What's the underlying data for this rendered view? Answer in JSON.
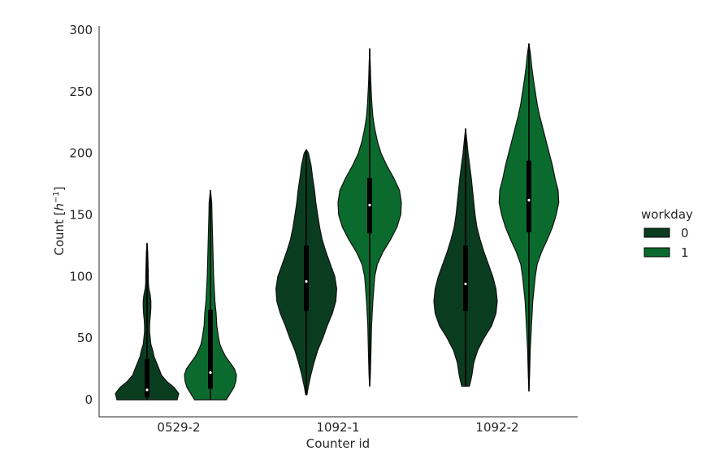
{
  "chart_data": {
    "type": "violin",
    "title": "",
    "xlabel": "Counter id",
    "ylabel_main": "Count [",
    "ylabel_h": "h",
    "ylabel_exp": "−1",
    "ylabel_close": "]",
    "ylim": [
      -14,
      302
    ],
    "yticks": [
      0,
      50,
      100,
      150,
      200,
      250,
      300
    ],
    "categories": [
      "0529-2",
      "1092-1",
      "1092-2"
    ],
    "legend": {
      "title": "workday",
      "placement": "right",
      "entries": [
        {
          "label": "0",
          "color": "#0a3d1f"
        },
        {
          "label": "1",
          "color": "#0b6b2e"
        }
      ]
    },
    "series": [
      {
        "name": "0",
        "color": "#0a3d1f",
        "violins": [
          {
            "category": "0529-2",
            "min": 0,
            "max": 127,
            "q1": 2,
            "median": 8,
            "q3": 33,
            "density": [
              [
                0,
                0.95
              ],
              [
                5,
                1.0
              ],
              [
                10,
                0.85
              ],
              [
                15,
                0.62
              ],
              [
                20,
                0.45
              ],
              [
                25,
                0.38
              ],
              [
                30,
                0.3
              ],
              [
                35,
                0.22
              ],
              [
                40,
                0.18
              ],
              [
                45,
                0.12
              ],
              [
                50,
                0.1
              ],
              [
                55,
                0.08
              ],
              [
                60,
                0.08
              ],
              [
                65,
                0.09
              ],
              [
                70,
                0.11
              ],
              [
                75,
                0.12
              ],
              [
                80,
                0.12
              ],
              [
                85,
                0.1
              ],
              [
                90,
                0.06
              ],
              [
                95,
                0.04
              ],
              [
                100,
                0.04
              ],
              [
                110,
                0.03
              ],
              [
                120,
                0.02
              ],
              [
                127,
                0.0
              ]
            ]
          },
          {
            "category": "1092-1",
            "min": 4,
            "max": 203,
            "q1": 72,
            "median": 96,
            "q3": 125,
            "density": [
              [
                4,
                0.02
              ],
              [
                10,
                0.06
              ],
              [
                20,
                0.14
              ],
              [
                30,
                0.24
              ],
              [
                40,
                0.36
              ],
              [
                50,
                0.52
              ],
              [
                60,
                0.66
              ],
              [
                70,
                0.82
              ],
              [
                80,
                0.93
              ],
              [
                90,
                0.96
              ],
              [
                100,
                0.9
              ],
              [
                110,
                0.76
              ],
              [
                120,
                0.62
              ],
              [
                130,
                0.5
              ],
              [
                140,
                0.42
              ],
              [
                150,
                0.36
              ],
              [
                160,
                0.3
              ],
              [
                170,
                0.26
              ],
              [
                180,
                0.2
              ],
              [
                190,
                0.15
              ],
              [
                200,
                0.07
              ],
              [
                203,
                0.0
              ]
            ]
          },
          {
            "category": "1092-2",
            "min": 11,
            "max": 220,
            "q1": 72,
            "median": 94,
            "q3": 125,
            "density": [
              [
                11,
                0.12
              ],
              [
                15,
                0.16
              ],
              [
                20,
                0.2
              ],
              [
                30,
                0.26
              ],
              [
                40,
                0.38
              ],
              [
                50,
                0.58
              ],
              [
                60,
                0.82
              ],
              [
                70,
                0.96
              ],
              [
                80,
                1.0
              ],
              [
                90,
                0.96
              ],
              [
                100,
                0.86
              ],
              [
                110,
                0.72
              ],
              [
                120,
                0.58
              ],
              [
                130,
                0.46
              ],
              [
                140,
                0.36
              ],
              [
                150,
                0.3
              ],
              [
                160,
                0.26
              ],
              [
                170,
                0.22
              ],
              [
                180,
                0.18
              ],
              [
                190,
                0.13
              ],
              [
                200,
                0.08
              ],
              [
                210,
                0.04
              ],
              [
                220,
                0.0
              ]
            ]
          }
        ]
      },
      {
        "name": "1",
        "color": "#0b6b2e",
        "violins": [
          {
            "category": "0529-2",
            "min": 0,
            "max": 170,
            "q1": 9,
            "median": 22,
            "q3": 73,
            "density": [
              [
                0,
                0.5
              ],
              [
                5,
                0.62
              ],
              [
                10,
                0.74
              ],
              [
                15,
                0.8
              ],
              [
                20,
                0.82
              ],
              [
                25,
                0.76
              ],
              [
                30,
                0.62
              ],
              [
                35,
                0.48
              ],
              [
                40,
                0.38
              ],
              [
                45,
                0.3
              ],
              [
                50,
                0.26
              ],
              [
                60,
                0.2
              ],
              [
                70,
                0.18
              ],
              [
                80,
                0.14
              ],
              [
                90,
                0.12
              ],
              [
                100,
                0.1
              ],
              [
                110,
                0.09
              ],
              [
                120,
                0.08
              ],
              [
                130,
                0.07
              ],
              [
                140,
                0.06
              ],
              [
                150,
                0.05
              ],
              [
                160,
                0.04
              ],
              [
                170,
                0.0
              ]
            ]
          },
          {
            "category": "1092-1",
            "min": 11,
            "max": 285,
            "q1": 135,
            "median": 158,
            "q3": 180,
            "density": [
              [
                11,
                0.0
              ],
              [
                20,
                0.02
              ],
              [
                40,
                0.04
              ],
              [
                60,
                0.06
              ],
              [
                80,
                0.1
              ],
              [
                100,
                0.16
              ],
              [
                110,
                0.24
              ],
              [
                120,
                0.42
              ],
              [
                130,
                0.66
              ],
              [
                140,
                0.86
              ],
              [
                150,
                0.98
              ],
              [
                160,
                1.0
              ],
              [
                170,
                0.94
              ],
              [
                180,
                0.76
              ],
              [
                190,
                0.54
              ],
              [
                200,
                0.36
              ],
              [
                210,
                0.24
              ],
              [
                220,
                0.16
              ],
              [
                230,
                0.1
              ],
              [
                240,
                0.07
              ],
              [
                250,
                0.05
              ],
              [
                260,
                0.03
              ],
              [
                270,
                0.02
              ],
              [
                285,
                0.0
              ]
            ]
          },
          {
            "category": "1092-2",
            "min": 7,
            "max": 289,
            "q1": 136,
            "median": 162,
            "q3": 194,
            "density": [
              [
                7,
                0.0
              ],
              [
                20,
                0.02
              ],
              [
                40,
                0.04
              ],
              [
                60,
                0.08
              ],
              [
                80,
                0.12
              ],
              [
                100,
                0.2
              ],
              [
                110,
                0.26
              ],
              [
                120,
                0.4
              ],
              [
                130,
                0.58
              ],
              [
                140,
                0.74
              ],
              [
                150,
                0.86
              ],
              [
                160,
                0.94
              ],
              [
                170,
                0.92
              ],
              [
                180,
                0.82
              ],
              [
                190,
                0.74
              ],
              [
                200,
                0.64
              ],
              [
                210,
                0.54
              ],
              [
                220,
                0.44
              ],
              [
                230,
                0.34
              ],
              [
                240,
                0.26
              ],
              [
                250,
                0.2
              ],
              [
                260,
                0.14
              ],
              [
                270,
                0.09
              ],
              [
                280,
                0.05
              ],
              [
                289,
                0.0
              ]
            ]
          }
        ]
      }
    ]
  }
}
